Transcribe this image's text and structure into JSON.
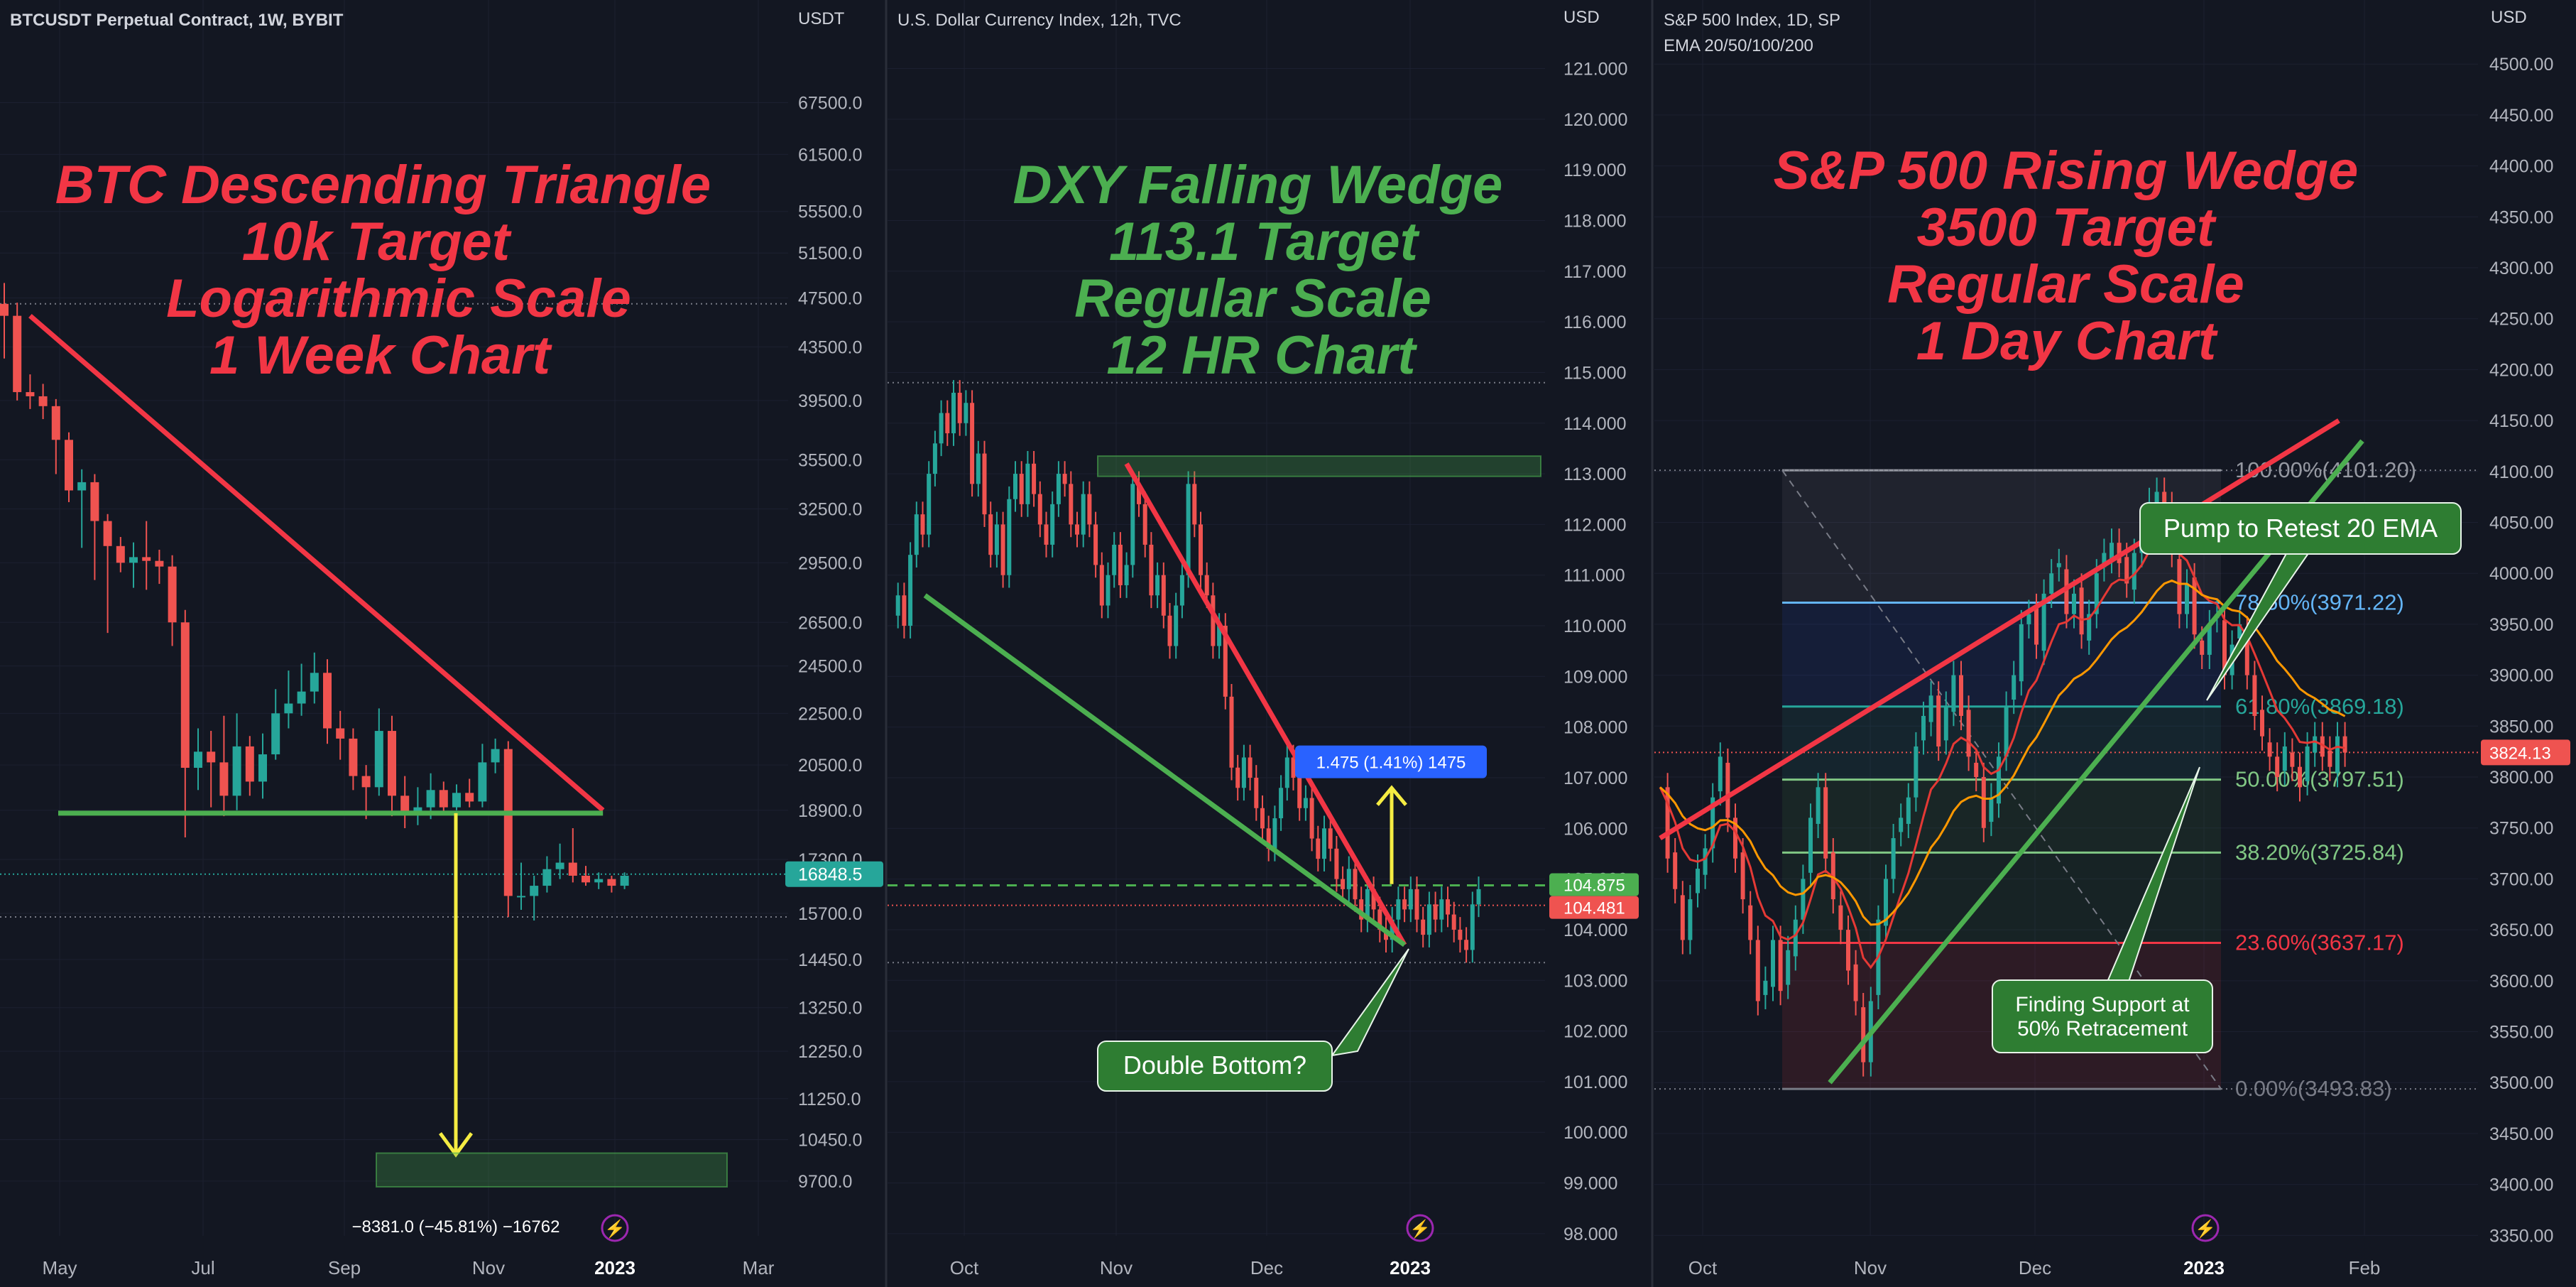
{
  "colors": {
    "background": "#131722",
    "divider": "#2a2e39",
    "grid": "#1c2030",
    "text": "#d1d4dc",
    "axis_text": "#b2b5be",
    "up": "#26a69a",
    "down": "#ef5350",
    "red_title": "#f23645",
    "green_title": "#4caf50",
    "yellow": "#f5ec42",
    "callout_green": "#2e7d32",
    "ruler_blue": "#2962ff",
    "dotted": "#787b86"
  },
  "chart_data": [
    {
      "type": "candlestick",
      "header": "BTCUSDT Perpetual Contract, 1W, BYBIT",
      "currency": "USDT",
      "scale": "logarithmic",
      "title_lines": [
        "BTC Descending Triangle",
        "10k Target",
        "Logarithmic Scale",
        "1 Week Chart"
      ],
      "title_color": "red",
      "x_ticks": [
        "May",
        "Jul",
        "Sep",
        "Nov",
        "2023",
        "Mar"
      ],
      "y_ticks": [
        "67500.0",
        "61500.0",
        "55500.0",
        "51500.0",
        "47500.0",
        "43500.0",
        "39500.0",
        "35500.0",
        "32500.0",
        "29500.0",
        "26500.0",
        "24500.0",
        "22500.0",
        "20500.0",
        "18900.0",
        "17300.0",
        "15700.0",
        "14450.0",
        "13250.0",
        "12250.0",
        "11250.0",
        "10450.0",
        "9700.0"
      ],
      "ylim": [
        9250,
        72000
      ],
      "price_label": "16848.5",
      "measure_label": "−8381.0 (−45.81%) −16762",
      "candles": [
        [
          47000,
          46000,
          48800,
          42600
        ],
        [
          46000,
          40100,
          47100,
          39500
        ],
        [
          40100,
          39800,
          41400,
          38900
        ],
        [
          39800,
          39100,
          40700,
          38200
        ],
        [
          39100,
          36800,
          39600,
          34600
        ],
        [
          36800,
          33600,
          37300,
          32900
        ],
        [
          33600,
          34100,
          34900,
          30300
        ],
        [
          34100,
          31800,
          34600,
          28600
        ],
        [
          31800,
          30400,
          32200,
          26000
        ],
        [
          30400,
          29500,
          30900,
          29000
        ],
        [
          29500,
          29800,
          30600,
          28200
        ],
        [
          29800,
          29600,
          31800,
          28100
        ],
        [
          29600,
          29300,
          30200,
          28400
        ],
        [
          29300,
          26500,
          29900,
          25400
        ],
        [
          26500,
          20400,
          27100,
          18000
        ],
        [
          20400,
          21000,
          21900,
          19600
        ],
        [
          21000,
          20600,
          21800,
          19000
        ],
        [
          20600,
          19400,
          22400,
          18700
        ],
        [
          19400,
          21200,
          22500,
          18900
        ],
        [
          21200,
          19900,
          21600,
          19400
        ],
        [
          19900,
          20900,
          21700,
          19300
        ],
        [
          20900,
          22500,
          23500,
          20700
        ],
        [
          22500,
          22900,
          24300,
          21900
        ],
        [
          22900,
          23400,
          24600,
          22400
        ],
        [
          23400,
          24200,
          25100,
          22900
        ],
        [
          24200,
          21900,
          24800,
          21300
        ],
        [
          21900,
          21500,
          22600,
          20700
        ],
        [
          21500,
          20100,
          21900,
          19600
        ],
        [
          20100,
          19700,
          20500,
          18600
        ],
        [
          19700,
          21800,
          22700,
          19400
        ],
        [
          21800,
          19400,
          22400,
          18700
        ],
        [
          19400,
          18800,
          20100,
          18300
        ],
        [
          18800,
          19000,
          19700,
          18400
        ],
        [
          19000,
          19600,
          20200,
          18600
        ],
        [
          19600,
          19000,
          19900,
          18800
        ],
        [
          19000,
          19500,
          19800,
          18900
        ],
        [
          19500,
          19200,
          20000,
          19000
        ],
        [
          19200,
          20600,
          21300,
          19000
        ],
        [
          20600,
          21100,
          21500,
          20200
        ],
        [
          21100,
          16200,
          21400,
          15600
        ],
        [
          16200,
          16200,
          17200,
          15800
        ],
        [
          16200,
          16500,
          16800,
          15500
        ],
        [
          16500,
          17000,
          17400,
          16300
        ],
        [
          17000,
          17200,
          17800,
          16700
        ],
        [
          17200,
          16800,
          18300,
          16600
        ],
        [
          16800,
          16600,
          17100,
          16500
        ],
        [
          16600,
          16700,
          16900,
          16400
        ],
        [
          16700,
          16500,
          16800,
          16300
        ],
        [
          16500,
          16800,
          16900,
          16400
        ]
      ],
      "levels": {
        "top_dotted": 47000,
        "price_line": 16848.5,
        "lower_dotted": 15600
      },
      "triangle_upper": [
        [
          46000,
          0
        ],
        [
          18900,
          46
        ]
      ],
      "triangle_base": 18800,
      "target_box": [
        9600,
        10200
      ],
      "arrow_from": 18800
    },
    {
      "type": "candlestick",
      "header": "U.S. Dollar Currency Index, 12h, TVC",
      "currency": "USD",
      "scale": "regular",
      "title_lines": [
        "DXY Falling Wedge",
        "113.1 Target",
        "Regular Scale",
        "12 HR Chart"
      ],
      "title_color": "green",
      "x_ticks": [
        "Oct",
        "Nov",
        "Dec",
        "2023"
      ],
      "y_ticks": [
        "121.000",
        "120.000",
        "119.000",
        "118.000",
        "117.000",
        "116.000",
        "115.000",
        "114.000",
        "113.000",
        "112.000",
        "111.000",
        "110.000",
        "109.000",
        "108.000",
        "107.000",
        "106.000",
        "105.000",
        "104.000",
        "103.000",
        "102.000",
        "101.000",
        "100.000",
        "99.000",
        "98.000"
      ],
      "ylim": [
        97.9,
        121.4
      ],
      "price_labels": [
        "104.875",
        "104.481"
      ],
      "ruler_label": "1.475 (1.41%) 1475",
      "callout": "Double Bottom?",
      "target_box": [
        112.95,
        113.35
      ],
      "levels": {
        "top_dotted": 114.8,
        "green_dashed": 104.875,
        "red_dotted": 104.481,
        "bottom_dotted": 103.35
      },
      "path": [
        110.2,
        110.6,
        110.0,
        111.4,
        112.2,
        111.8,
        113.0,
        113.6,
        114.2,
        113.8,
        114.6,
        114.0,
        114.4,
        112.8,
        113.4,
        112.2,
        111.4,
        112.0,
        111.0,
        112.5,
        113.0,
        112.4,
        113.2,
        112.6,
        112.0,
        111.6,
        112.4,
        113.0,
        112.8,
        112.0,
        111.8,
        112.6,
        112.0,
        111.2,
        110.4,
        111.0,
        111.6,
        110.8,
        111.2,
        112.8,
        112.4,
        111.6,
        110.6,
        111.0,
        110.2,
        109.6,
        110.4,
        111.0,
        112.8,
        112.0,
        111.0,
        110.6,
        109.6,
        110.0,
        108.6,
        107.2,
        106.8,
        107.4,
        107.0,
        106.4,
        106.0,
        105.6,
        106.2,
        106.8,
        107.4,
        107.0,
        106.4,
        106.6,
        105.8,
        105.4,
        106.0,
        105.6,
        105.0,
        104.8,
        105.2,
        104.6,
        104.2,
        104.8,
        104.4,
        104.0,
        103.8,
        104.2,
        104.6,
        104.4,
        104.8,
        104.2,
        103.9,
        104.5,
        104.2,
        104.6,
        104.3,
        104.0,
        103.8,
        103.6,
        104.5,
        104.8
      ],
      "wedge_upper": [
        [
          113.2,
          38
        ],
        [
          103.7,
          83
        ]
      ],
      "wedge_lower": [
        [
          110.6,
          1
        ],
        [
          103.7,
          83
        ]
      ]
    },
    {
      "type": "candlestick",
      "header": "S&P 500 Index, 1D, SP",
      "subheader": "EMA 20/50/100/200",
      "currency": "USD",
      "scale": "regular",
      "title_lines": [
        "S&P 500 Rising Wedge",
        "3500 Target",
        "Regular Scale",
        "1 Day Chart"
      ],
      "title_color": "red",
      "x_ticks": [
        "Oct",
        "Nov",
        "Dec",
        "2023",
        "Feb"
      ],
      "y_ticks": [
        "4500.00",
        "4450.00",
        "4400.00",
        "4350.00",
        "4300.00",
        "4250.00",
        "4200.00",
        "4150.00",
        "4100.00",
        "4050.00",
        "4000.00",
        "3950.00",
        "3900.00",
        "3850.00",
        "3800.00",
        "3750.00",
        "3700.00",
        "3650.00",
        "3600.00",
        "3550.00",
        "3500.00",
        "3450.00",
        "3400.00",
        "3350.00"
      ],
      "ylim": [
        3330,
        4535
      ],
      "price_label": "3824.13",
      "fib_levels": [
        {
          "label": "100.00%(4101.20)",
          "value": 4101.2,
          "color": "#9598a1"
        },
        {
          "label": "78.60%(3971.22)",
          "value": 3971.22,
          "color": "#64b5f6"
        },
        {
          "label": "61.80%(3869.18)",
          "value": 3869.18,
          "color": "#26a69a"
        },
        {
          "label": "50.00%(3797.51)",
          "value": 3797.51,
          "color": "#81c784"
        },
        {
          "label": "38.20%(3725.84)",
          "value": 3725.84,
          "color": "#81c784"
        },
        {
          "label": "23.60%(3637.17)",
          "value": 3637.17,
          "color": "#f23645"
        },
        {
          "label": "0.00%(3493.83)",
          "value": 3493.83,
          "color": "#787b86"
        }
      ],
      "callouts": [
        "Pump to Retest 20 EMA",
        "Finding Support at",
        "50% Retracement"
      ],
      "closes": [
        3790,
        3720,
        3690,
        3640,
        3680,
        3710,
        3730,
        3780,
        3820,
        3760,
        3720,
        3680,
        3640,
        3580,
        3600,
        3640,
        3590,
        3630,
        3660,
        3700,
        3760,
        3790,
        3720,
        3680,
        3650,
        3610,
        3580,
        3520,
        3580,
        3660,
        3700,
        3740,
        3760,
        3780,
        3830,
        3860,
        3880,
        3830,
        3870,
        3900,
        3860,
        3820,
        3800,
        3750,
        3780,
        3820,
        3870,
        3900,
        3950,
        3960,
        3930,
        3980,
        4000,
        4010,
        3960,
        3980,
        3940,
        3960,
        4000,
        4020,
        4030,
        4010,
        3990,
        4020,
        4040,
        4070,
        4080,
        4060,
        4020,
        3960,
        3990,
        3940,
        3920,
        3950,
        3960,
        3900,
        3930,
        3950,
        3900,
        3860,
        3840,
        3820,
        3800,
        3830,
        3810,
        3790,
        3830,
        3840,
        3820,
        3810,
        3840,
        3824
      ],
      "wedge_upper": [
        [
          3740,
          0
        ],
        [
          4150,
          60
        ]
      ],
      "wedge_lower": [
        [
          3500,
          15
        ],
        [
          4130,
          65
        ]
      ],
      "levels": {
        "red_dotted": 3824.13
      }
    }
  ]
}
